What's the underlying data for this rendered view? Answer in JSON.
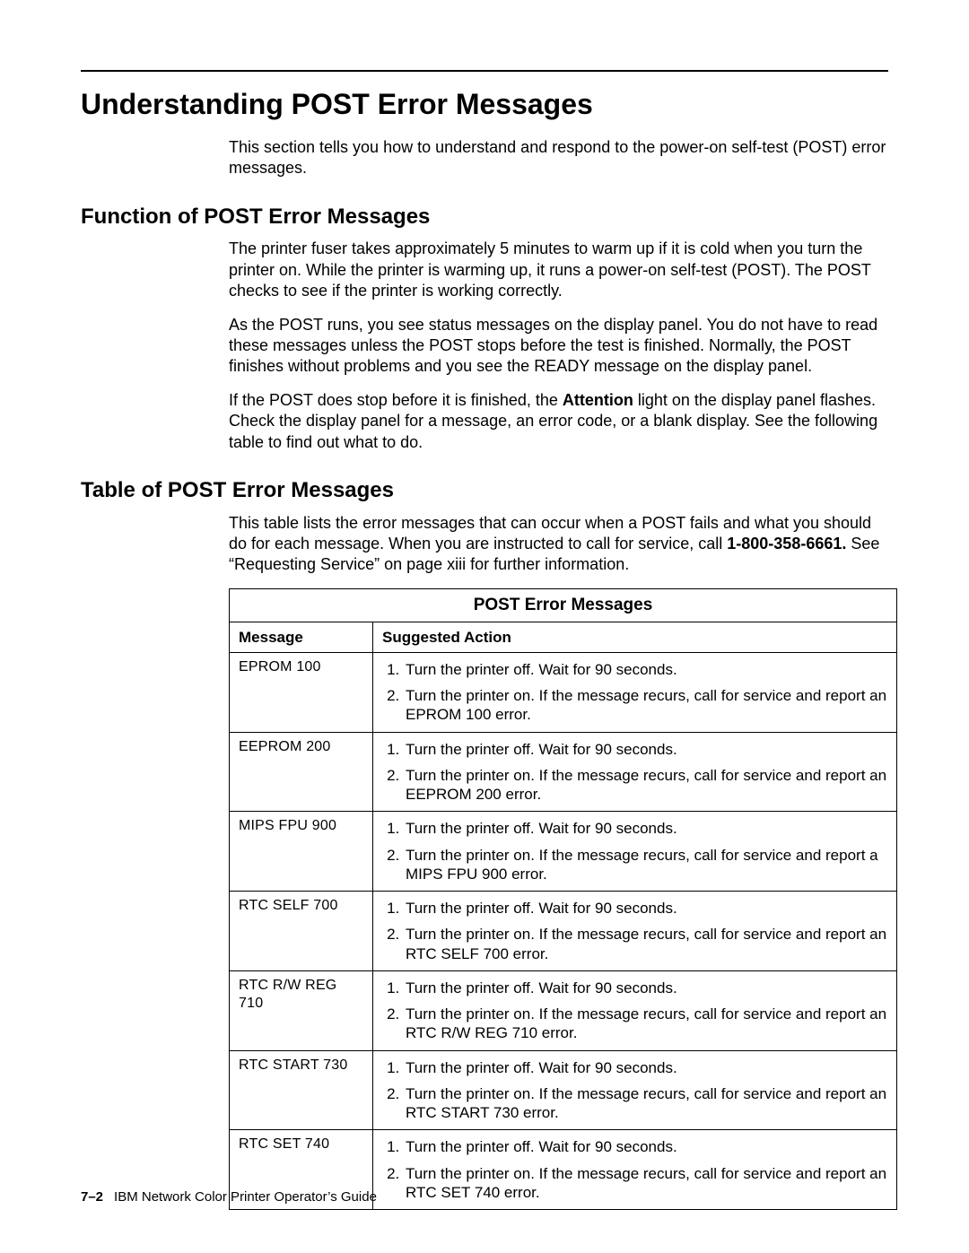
{
  "page": {
    "title": "Understanding POST Error Messages",
    "intro": "This section tells you how to understand and respond to the power-on self-test (POST) error messages.",
    "section1": {
      "heading": "Function of POST Error Messages",
      "p1": "The printer fuser takes approximately 5 minutes to warm up if it is cold when you turn the printer on. While the printer is warming up, it runs a power-on self-test (POST). The POST checks to see if the printer is working correctly.",
      "p2a": "As the POST runs, you see status messages on the display panel. You do not have to read these messages unless the POST stops before the test is finished. Normally, the POST finishes without problems and you see the ",
      "p2_ready": "READY",
      "p2b": " message on the display panel.",
      "p3a": "If the POST does stop before it is finished, the ",
      "p3_bold": "Attention",
      "p3b": " light on the display panel flashes. Check the display panel for a message, an error code, or a blank display. See the following table to find out what to do."
    },
    "section2": {
      "heading": "Table of POST Error Messages",
      "p1a": "This table lists the error messages that can occur when a POST fails and what you should do for each message. When you are instructed to call for service, call ",
      "p1_phone": "1-800-358-6661.",
      "p1b": " See “Requesting Service” on page xiii for further information."
    },
    "table": {
      "title": "POST Error Messages",
      "col1": "Message",
      "col2": "Suggested Action",
      "step_off": "Turn the printer off. Wait for 90 seconds.",
      "rows": [
        {
          "msg": "EPROM 100",
          "step2": "Turn the printer on. If the message recurs, call for service and report an EPROM 100 error."
        },
        {
          "msg": "EEPROM 200",
          "step2": "Turn the printer on. If the message recurs, call for service and report an EEPROM 200 error."
        },
        {
          "msg": "MIPS FPU 900",
          "step2": "Turn the printer on. If the message recurs, call for service and report a MIPS FPU 900 error."
        },
        {
          "msg": "RTC SELF 700",
          "step2": "Turn the printer on. If the message recurs, call for service and report an RTC SELF 700 error."
        },
        {
          "msg": "RTC R/W REG 710",
          "step2": "Turn the printer on. If the message recurs, call for service and report an RTC R/W REG 710 error."
        },
        {
          "msg": "RTC START 730",
          "step2": "Turn the printer on. If the message recurs, call for service and report an RTC START 730 error."
        },
        {
          "msg": "RTC SET 740",
          "step2": "Turn the printer on. If the message recurs, call for service and report an RTC SET 740 error."
        }
      ]
    },
    "footer": {
      "page_no": "7–2",
      "book": "IBM Network Color Printer Operator’s Guide"
    }
  }
}
